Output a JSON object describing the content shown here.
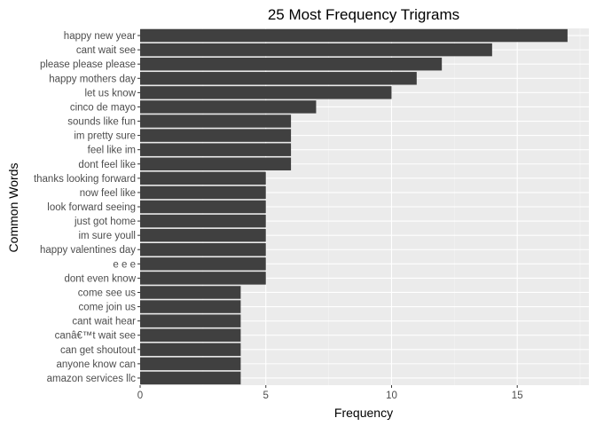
{
  "chart_data": {
    "type": "bar",
    "orientation": "horizontal",
    "title": "25 Most Frequency Trigrams",
    "xlabel": "Frequency",
    "ylabel": "Common Words",
    "xlim": [
      0,
      17.85
    ],
    "xticks": [
      0,
      5,
      10,
      15
    ],
    "grid": true,
    "legend": "none",
    "colors": {
      "bar": "#404040",
      "panel": "#ebebeb",
      "grid_major": "#ffffff",
      "tick_text": "#4d4d4d"
    },
    "categories": [
      "happy new year",
      "cant wait see",
      "please please please",
      "happy mothers day",
      "let us know",
      "cinco de mayo",
      "sounds like fun",
      "im pretty sure",
      "feel like im",
      "dont feel like",
      "thanks looking forward",
      "now feel like",
      "look forward seeing",
      "just got home",
      "im sure youll",
      "happy valentines day",
      "e e e",
      "dont even know",
      "come see us",
      "come join us",
      "cant wait hear",
      "canâ€™t wait see",
      "can get shoutout",
      "anyone know can",
      "amazon services llc"
    ],
    "values": [
      17,
      14,
      12,
      11,
      10,
      7,
      6,
      6,
      6,
      6,
      5,
      5,
      5,
      5,
      5,
      5,
      5,
      5,
      4,
      4,
      4,
      4,
      4,
      4,
      4
    ]
  }
}
